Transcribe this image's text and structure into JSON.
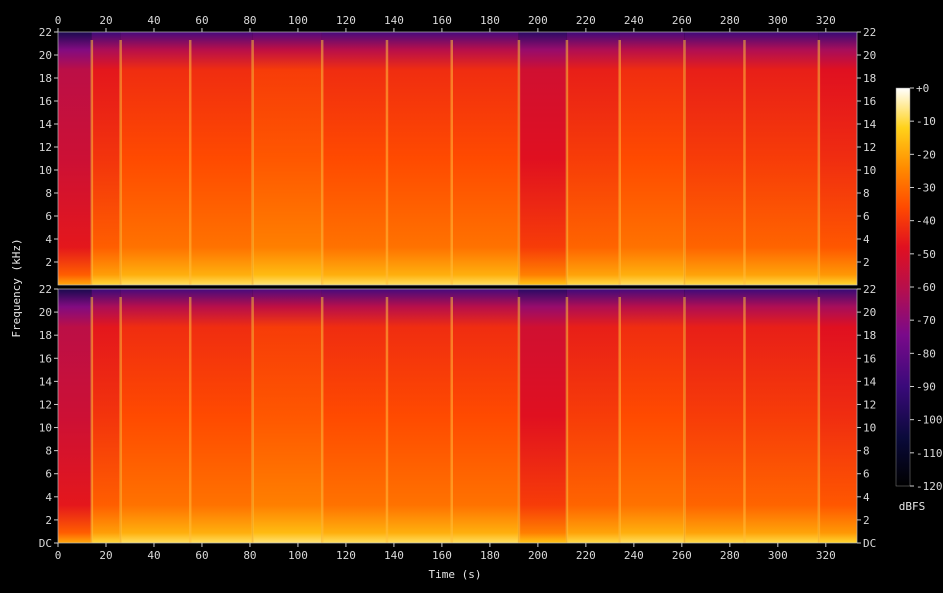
{
  "chart_data": {
    "type": "heatmap",
    "title": "",
    "xlabel": "Time (s)",
    "ylabel": "Frequency (kHz)",
    "colorbar_label": "dBFS",
    "xlim": [
      0,
      333
    ],
    "ylim": [
      0,
      22
    ],
    "x_ticks": [
      "0",
      "20",
      "40",
      "60",
      "80",
      "100",
      "120",
      "140",
      "160",
      "180",
      "200",
      "220",
      "240",
      "260",
      "280",
      "300",
      "320"
    ],
    "y_ticks_top": [
      "2",
      "4",
      "6",
      "8",
      "10",
      "12",
      "14",
      "16",
      "18",
      "20",
      "22"
    ],
    "y_ticks_bottom": [
      "DC",
      "2",
      "4",
      "6",
      "8",
      "10",
      "12",
      "14",
      "16",
      "18",
      "20",
      "22"
    ],
    "colorbar_ticks": [
      "+0",
      "-10",
      "-20",
      "-30",
      "-40",
      "-50",
      "-60",
      "-70",
      "-80",
      "-90",
      "-100",
      "-110",
      "-120"
    ],
    "channels": [
      "top",
      "bottom"
    ],
    "segments": [
      {
        "start": 0,
        "end": 14,
        "level": -55
      },
      {
        "start": 14,
        "end": 26,
        "level": -45
      },
      {
        "start": 26,
        "end": 81,
        "level": -42
      },
      {
        "start": 81,
        "end": 110,
        "level": -40
      },
      {
        "start": 110,
        "end": 192,
        "level": -42
      },
      {
        "start": 192,
        "end": 212,
        "level": -50
      },
      {
        "start": 212,
        "end": 234,
        "level": -44
      },
      {
        "start": 234,
        "end": 261,
        "level": -42
      },
      {
        "start": 261,
        "end": 317,
        "level": -44
      },
      {
        "start": 317,
        "end": 333,
        "level": -46
      }
    ],
    "transients_s": [
      14,
      26,
      55,
      81,
      110,
      137,
      164,
      192,
      212,
      234,
      261,
      286,
      317
    ]
  }
}
